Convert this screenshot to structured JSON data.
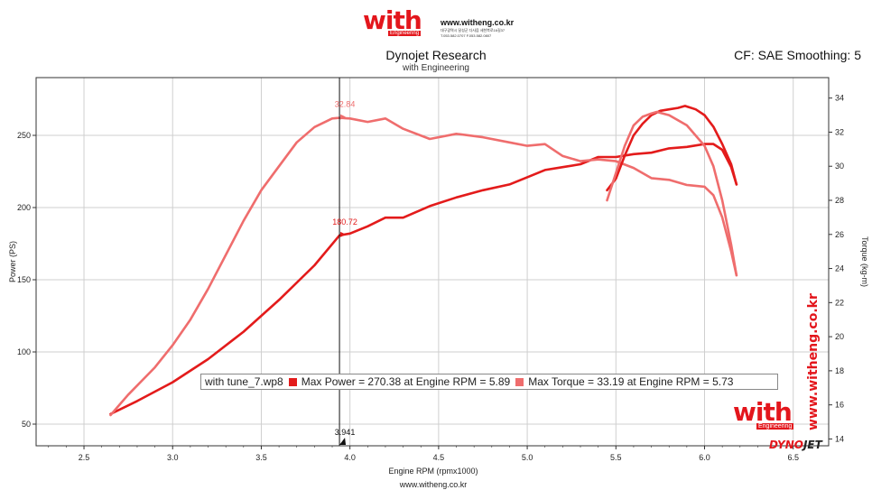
{
  "header": {
    "logo_word": "with",
    "logo_sub": "Engineering",
    "site": "www.witheng.co.kr",
    "address_line1": "대구광역시 달성군 다사읍 세천북로16길37",
    "address_line2": "T.053.582.0707  F.053.582.0807"
  },
  "chart_title": "Dynojet Research",
  "chart_subtitle": "with Engineering",
  "cf_text": "CF: SAE Smoothing: 5",
  "footer_url": "www.witheng.co.kr",
  "watermark": {
    "vertical_url": "www.witheng.co.kr",
    "logo_word": "with",
    "logo_sub": "Engineering",
    "brand_a": "DYNO",
    "brand_b": "JET"
  },
  "legend": {
    "run": "with tune_7.wp8",
    "max_power": "Max Power = 270.38 at Engine RPM = 5.89",
    "max_torque": "Max Torque = 33.19 at Engine RPM = 5.73"
  },
  "annotations": {
    "torque_marker": "32.84",
    "power_marker": "180.72",
    "rpm_marker": "3.941"
  },
  "colors": {
    "power": "#e31b1b",
    "torque": "#ef6d6d",
    "axis": "#333333",
    "grid": "#cfcfcf"
  },
  "chart_data": {
    "type": "line",
    "xlabel": "Engine RPM (rpmx1000)",
    "ylabel": "Power (PS)",
    "y2label": "Torque (kg-m)",
    "xlim": [
      2.23,
      6.7
    ],
    "ylim": [
      35,
      290
    ],
    "y2lim": [
      13.6,
      35.2
    ],
    "x_ticks": [
      2.5,
      3.0,
      3.5,
      4.0,
      4.5,
      5.0,
      5.5,
      6.0,
      6.5
    ],
    "x_tick_labels": [
      "2.5",
      "3.0",
      "3.5",
      "4.0",
      "4.5",
      "5.0",
      "5.5",
      "6.0",
      "6.5"
    ],
    "y_ticks": [
      50,
      100,
      150,
      200,
      250
    ],
    "y2_ticks": [
      14,
      16,
      18,
      20,
      22,
      24,
      26,
      28,
      30,
      32,
      34
    ],
    "cursor_rpm": 3.941,
    "series": [
      {
        "axis": "left",
        "color": "#e31b1b",
        "x": [
          2.65,
          2.8,
          3.0,
          3.2,
          3.4,
          3.6,
          3.8,
          3.941,
          4.0,
          4.1,
          4.2,
          4.3,
          4.45,
          4.6,
          4.75,
          4.9,
          5.0,
          5.1,
          5.2,
          5.3,
          5.4,
          5.5,
          5.6,
          5.7,
          5.8,
          5.9,
          6.0,
          6.05,
          6.1,
          6.15,
          6.18
        ],
        "y": [
          57,
          66,
          79,
          95,
          114,
          136,
          160,
          180.72,
          182,
          187,
          193,
          193,
          201,
          207,
          212,
          216,
          221,
          226,
          228,
          230,
          235,
          235,
          237,
          238,
          241,
          242,
          244,
          244,
          240,
          228,
          216
        ]
      },
      {
        "axis": "right",
        "color": "#ef6d6d",
        "x": [
          2.65,
          2.75,
          2.9,
          3.0,
          3.1,
          3.2,
          3.3,
          3.4,
          3.5,
          3.6,
          3.7,
          3.8,
          3.9,
          3.941,
          4.0,
          4.1,
          4.2,
          4.3,
          4.45,
          4.6,
          4.75,
          4.9,
          5.0,
          5.1,
          5.2,
          5.3,
          5.4,
          5.5,
          5.6,
          5.7,
          5.8,
          5.9,
          6.0,
          6.05,
          6.1,
          6.15,
          6.18
        ],
        "y": [
          15.4,
          16.6,
          18.2,
          19.5,
          21.0,
          22.8,
          24.8,
          26.8,
          28.6,
          30.0,
          31.4,
          32.3,
          32.8,
          32.84,
          32.8,
          32.6,
          32.8,
          32.2,
          31.6,
          31.9,
          31.7,
          31.4,
          31.2,
          31.3,
          30.6,
          30.3,
          30.4,
          30.3,
          29.9,
          29.3,
          29.2,
          28.9,
          28.8,
          28.3,
          27.0,
          25.0,
          23.6
        ]
      },
      {
        "axis": "left",
        "color": "#e31b1b",
        "x": [
          5.45,
          5.5,
          5.55,
          5.6,
          5.65,
          5.7,
          5.75,
          5.8,
          5.85,
          5.89,
          5.95,
          6.0,
          6.05,
          6.1,
          6.15,
          6.18
        ],
        "y": [
          212,
          220,
          236,
          250,
          258,
          264,
          267,
          268,
          269,
          270.38,
          268,
          264,
          256,
          244,
          230,
          216
        ]
      },
      {
        "axis": "right",
        "color": "#ef6d6d",
        "x": [
          5.45,
          5.5,
          5.55,
          5.6,
          5.65,
          5.7,
          5.73,
          5.8,
          5.9,
          6.0,
          6.05,
          6.1,
          6.15,
          6.18
        ],
        "y": [
          28.0,
          29.6,
          31.2,
          32.4,
          32.9,
          33.1,
          33.19,
          33.0,
          32.4,
          31.2,
          30.0,
          28.0,
          25.4,
          23.6
        ]
      }
    ]
  }
}
